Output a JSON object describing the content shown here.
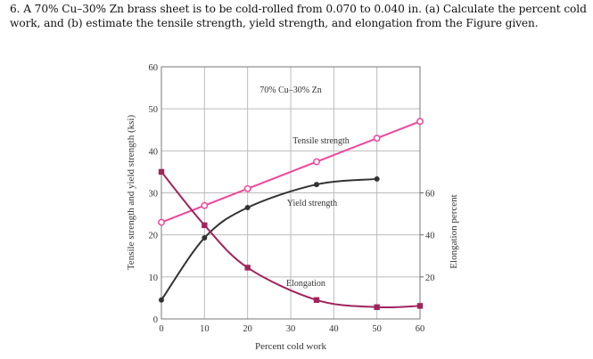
{
  "question": "6. A 70% Cu–30% Zn brass sheet is to be cold-rolled from 0.070 to 0.040 in. (a) Calculate the percent cold work, and (b) estimate the tensile strength, yield strength, and elongation from the Figure given.",
  "chart_data": {
    "type": "line",
    "title": "70% Cu–30% Zn",
    "xlabel": "Percent cold work",
    "ylabel": "Tensile strength and yield strength (ksi)",
    "y2label": "Elongation percent",
    "xlim": [
      0,
      60
    ],
    "ylim": [
      0,
      60
    ],
    "y2lim": [
      0,
      120
    ],
    "xticks": [
      "0",
      "10",
      "20",
      "30",
      "40",
      "50",
      "60"
    ],
    "yticks": [
      "0",
      "10",
      "20",
      "30",
      "40",
      "50",
      "60"
    ],
    "y2ticks": [
      "20",
      "40",
      "60"
    ],
    "grid": true,
    "series": [
      {
        "name": "Tensile strength",
        "axis": "left",
        "color": "#f0479a",
        "marker": "open-circle",
        "x": [
          0,
          10,
          20,
          36,
          50,
          60
        ],
        "y": [
          23,
          27,
          31,
          37.4,
          43,
          47
        ]
      },
      {
        "name": "Yield strength",
        "axis": "left",
        "color": "#333333",
        "marker": "filled-circle",
        "x": [
          0,
          10,
          20,
          36,
          50
        ],
        "y": [
          4.5,
          19.3,
          26.5,
          32,
          33.3
        ]
      },
      {
        "name": "Elongation",
        "axis": "right",
        "color": "#a0245e",
        "marker": "filled-square",
        "x": [
          0,
          10,
          20,
          36,
          50,
          60
        ],
        "y": [
          70,
          44.6,
          24.4,
          9,
          5.6,
          6.2
        ]
      }
    ]
  }
}
